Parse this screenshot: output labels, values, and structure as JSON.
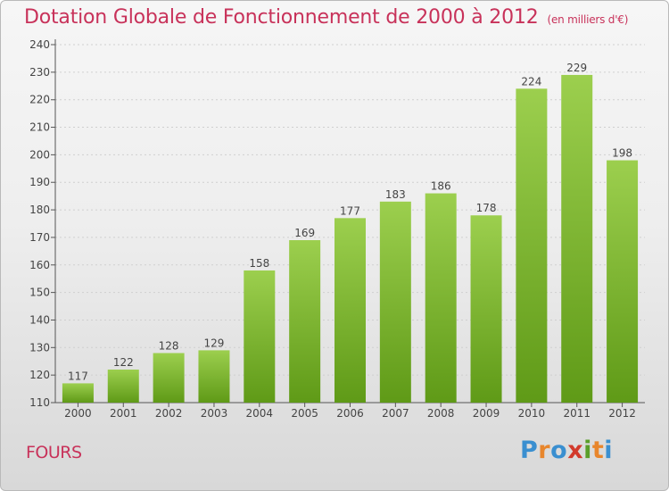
{
  "header": {
    "title": "Dotation Globale de Fonctionnement de 2000 à 2012",
    "unit": "(en milliers d'€)"
  },
  "footer": {
    "commune": "FOURS",
    "logo": {
      "letters": [
        "P",
        "r",
        "o",
        "x",
        "i",
        "t",
        "i"
      ],
      "colors": [
        "#3a8fd0",
        "#e8862c",
        "#3a8fd0",
        "#d23a2c",
        "#5a9e2a",
        "#e8862c",
        "#3a8fd0"
      ]
    }
  },
  "colors": {
    "bar_top": "#9ccf4e",
    "bar_bottom": "#5f9a17",
    "title": "#c8325a"
  },
  "chart_data": {
    "type": "bar",
    "categories": [
      "2000",
      "2001",
      "2002",
      "2003",
      "2004",
      "2005",
      "2006",
      "2007",
      "2008",
      "2009",
      "2010",
      "2011",
      "2012"
    ],
    "values": [
      117,
      122,
      128,
      129,
      158,
      169,
      177,
      183,
      186,
      178,
      224,
      229,
      198
    ],
    "ylim": [
      110,
      240
    ],
    "yticks": [
      110,
      120,
      130,
      140,
      150,
      160,
      170,
      180,
      190,
      200,
      210,
      220,
      230,
      240
    ],
    "grid": true,
    "title": "Dotation Globale de Fonctionnement de 2000 à 2012",
    "xlabel": "",
    "ylabel": ""
  }
}
